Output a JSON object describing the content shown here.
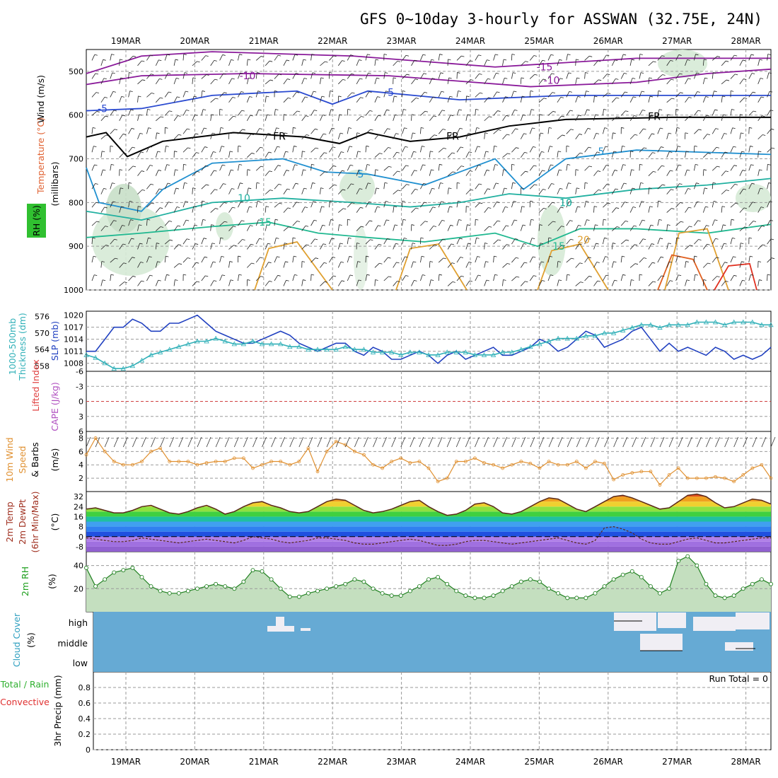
{
  "title": "GFS 0~10day 3-hourly for ASSWAN (32.75E, 24N)",
  "dates": [
    "19MAR",
    "20MAR",
    "21MAR",
    "22MAR",
    "23MAR",
    "24MAR",
    "25MAR",
    "26MAR",
    "27MAR",
    "28MAR"
  ],
  "panels": {
    "sounding": {
      "labels": [
        "Wind (m/s)",
        "Temperature (°C)",
        "RH (%)",
        "(millibars)"
      ],
      "label_colors": [
        "#000000",
        "#e06030",
        "#e06030",
        "#000000"
      ],
      "yticks": [
        "500",
        "600",
        "700",
        "800",
        "900",
        "1000"
      ]
    },
    "slp": {
      "left_labels": [
        "1000-500mb",
        "Thickness (dm)"
      ],
      "right_labels": [
        "SLP (mb)"
      ],
      "left_ticks": [
        "576",
        "570",
        "564",
        "558"
      ],
      "right_ticks": [
        "1020",
        "1017",
        "1014",
        "1011",
        "1008"
      ]
    },
    "cape": {
      "labels": [
        "Lifted Index",
        "CAPE (J/kg)"
      ],
      "ticks": [
        "-6",
        "-3",
        "0",
        "3",
        "6"
      ]
    },
    "wind": {
      "labels": [
        "10m Wind",
        "Speed",
        "& Barbs",
        "(m/s)"
      ],
      "ticks": [
        "8",
        "6",
        "4",
        "2"
      ]
    },
    "temp": {
      "labels": [
        "2m Temp",
        "2m DewPt",
        "(6hr Min/Max)",
        "(°C)"
      ],
      "ticks": [
        "32",
        "24",
        "16",
        "8",
        "0",
        "-8"
      ]
    },
    "rh": {
      "labels": [
        "2m RH",
        "(%)"
      ],
      "ticks": [
        "40",
        "20"
      ]
    },
    "cloud": {
      "labels": [
        "Cloud Cover",
        "(%)"
      ],
      "levels": [
        "high",
        "middle",
        "low"
      ]
    },
    "precip": {
      "labels": [
        "Total / Rain",
        "Convective",
        "3hr Precip (mm)"
      ],
      "ticks": [
        "0.8",
        "0.6",
        "0.4",
        "0.2",
        "0"
      ],
      "run_total": "Run Total = 0"
    }
  },
  "contour_labels": [
    "-15",
    "-10",
    "-5",
    "-10",
    "-5",
    "FR",
    "FR",
    "FR",
    "5",
    "5",
    "10",
    "10",
    "10",
    "15",
    "15",
    "20"
  ],
  "chart_data": [
    {
      "type": "line",
      "name": "sounding",
      "y_axis": "pressure (millibars)",
      "ylim": [
        1000,
        450
      ],
      "contours": {
        "temperature_C": [
          -15,
          -10,
          -5,
          0,
          5,
          10,
          15,
          20,
          25
        ],
        "rh_percent": [
          10,
          30
        ]
      }
    },
    {
      "type": "line",
      "name": "slp_thickness",
      "x_days": [
        0,
        0.125,
        0.25,
        0.375,
        0.5,
        0.625,
        0.75,
        0.875,
        1.0,
        1.125,
        1.25,
        1.375,
        1.5,
        1.625,
        1.75,
        1.875,
        2.0,
        2.125,
        2.25,
        2.375,
        2.5,
        2.625,
        2.75,
        2.875,
        3.0,
        3.125,
        3.25,
        3.375,
        3.5,
        3.625,
        3.75,
        3.875,
        4.0,
        4.125,
        4.25,
        4.375,
        4.5,
        4.625,
        4.75,
        4.875,
        5.0,
        5.125,
        5.25,
        5.375,
        5.5,
        5.625,
        5.75,
        5.875,
        6.0,
        6.125,
        6.25,
        6.375,
        6.5,
        6.625,
        6.75,
        6.875,
        7.0,
        7.125,
        7.25,
        7.375,
        7.5,
        7.625,
        7.75,
        7.875,
        8.0,
        8.125,
        8.25,
        8.375,
        8.5,
        8.625,
        8.75,
        8.875,
        9.0,
        9.125,
        9.25
      ],
      "series": [
        {
          "name": "SLP (mb)",
          "color": "#2040c0",
          "axis": "right",
          "ylim": [
            1006,
            1021
          ],
          "values": [
            1011,
            1011,
            1014,
            1017,
            1017,
            1019,
            1018,
            1016,
            1016,
            1018,
            1018,
            1019,
            1020,
            1018,
            1016,
            1015,
            1014,
            1013,
            1013,
            1014,
            1015,
            1016,
            1015,
            1013,
            1012,
            1011,
            1012,
            1013,
            1013,
            1011,
            1010,
            1012,
            1011,
            1009,
            1009,
            1010,
            1011,
            1010,
            1008,
            1010,
            1011,
            1009,
            1010,
            1011,
            1012,
            1010,
            1010,
            1011,
            1012,
            1014,
            1013,
            1011,
            1012,
            1014,
            1016,
            1015,
            1012,
            1013,
            1014,
            1016,
            1017,
            1014,
            1011,
            1013,
            1011,
            1012,
            1011,
            1010,
            1012,
            1011,
            1009,
            1010,
            1009,
            1010,
            1012
          ]
        },
        {
          "name": "1000-500mb Thickness (dm)",
          "color": "#30b0b8",
          "axis": "left",
          "ylim": [
            556,
            578
          ],
          "values": [
            562,
            561,
            559,
            557,
            557,
            558,
            560,
            562,
            563,
            564,
            565,
            566,
            567,
            567,
            568,
            567,
            566,
            566,
            567,
            566,
            566,
            566,
            565,
            565,
            564,
            564,
            564,
            564,
            565,
            564,
            564,
            563,
            563,
            563,
            562,
            563,
            563,
            562,
            562,
            563,
            563,
            563,
            562,
            562,
            562,
            563,
            563,
            564,
            565,
            566,
            567,
            568,
            568,
            568,
            569,
            569,
            570,
            570,
            571,
            572,
            573,
            573,
            572,
            573,
            573,
            573,
            574,
            574,
            574,
            573,
            574,
            574,
            574,
            573,
            573
          ]
        }
      ]
    },
    {
      "type": "line",
      "name": "lifted_index_cape",
      "ylim": [
        6,
        -6
      ],
      "series": [
        {
          "name": "Lifted Index",
          "color": "#d02020",
          "values": [
            0
          ]
        }
      ]
    },
    {
      "type": "line",
      "name": "10m_wind_speed",
      "ylabel": "(m/s)",
      "ylim": [
        0,
        9
      ],
      "series": [
        {
          "name": "10m Wind Speed",
          "color": "#e09030",
          "values": [
            5.5,
            8,
            6,
            4.5,
            4,
            4,
            4.5,
            6,
            6.5,
            4.5,
            4.5,
            4.5,
            4,
            4.3,
            4.5,
            4.5,
            5,
            5,
            3.5,
            4,
            4.5,
            4.5,
            4,
            4.5,
            6.5,
            3,
            6,
            7.5,
            7,
            6,
            5.5,
            4,
            3.5,
            4.5,
            5,
            4.3,
            4.5,
            3.5,
            1.5,
            2,
            4.5,
            4.5,
            5,
            4.3,
            4,
            3.5,
            4,
            4.5,
            4.2,
            3.5,
            4.5,
            4,
            4,
            4.5,
            3.5,
            4.5,
            4.2,
            1.8,
            2.5,
            2.8,
            3,
            3,
            1,
            2.5,
            3.5,
            2,
            2,
            2,
            2.2,
            2,
            1.5,
            2.5,
            3.5,
            4,
            2
          ]
        }
      ]
    },
    {
      "type": "area",
      "name": "2m_temp_dewpoint",
      "ylabel": "(°C)",
      "ylim": [
        -12,
        36
      ],
      "series": [
        {
          "name": "2m Temp",
          "color": "#5a2a1a",
          "values": [
            22,
            23,
            21,
            19,
            19,
            21,
            24,
            25,
            22,
            19,
            18,
            20,
            23,
            25,
            22,
            18,
            20,
            24,
            27,
            28,
            25,
            23,
            20,
            19,
            20,
            24,
            28,
            30,
            29,
            25,
            21,
            19,
            20,
            22,
            25,
            28,
            29,
            24,
            20,
            17,
            18,
            21,
            26,
            27,
            24,
            19,
            18,
            20,
            24,
            28,
            31,
            30,
            26,
            22,
            20,
            24,
            28,
            32,
            33,
            31,
            28,
            25,
            22,
            23,
            28,
            33,
            34,
            32,
            27,
            23,
            24,
            27,
            30,
            29,
            26
          ]
        },
        {
          "name": "2m DewPt",
          "color": "#5a2a1a",
          "values": [
            -1,
            -2,
            -3,
            -4,
            -4,
            -3,
            -1,
            -2,
            -3,
            -4,
            -5,
            -4,
            -3,
            -2,
            -3,
            -4,
            -5,
            -3,
            0,
            -1,
            -2,
            -4,
            -5,
            -4,
            -3,
            -1,
            -1,
            -2,
            -3,
            -5,
            -6,
            -6,
            -5,
            -4,
            -3,
            -2,
            -3,
            -5,
            -7,
            -7,
            -6,
            -4,
            -3,
            -3,
            -4,
            -5,
            -6,
            -5,
            -4,
            -3,
            -2,
            -1,
            -3,
            -5,
            -6,
            -3,
            7,
            8,
            6,
            3,
            -2,
            -5,
            -6,
            -6,
            -4,
            -2,
            -1,
            -3,
            -5,
            -5,
            -4,
            -3,
            -2,
            -1,
            -1
          ]
        }
      ]
    },
    {
      "type": "area",
      "name": "2m_rh",
      "ylabel": "(%)",
      "ylim": [
        0,
        52
      ],
      "series": [
        {
          "name": "2m RH",
          "color": "#40a030",
          "values": [
            38,
            22,
            28,
            34,
            36,
            38,
            30,
            22,
            18,
            16,
            16,
            18,
            20,
            22,
            24,
            22,
            20,
            26,
            36,
            35,
            28,
            20,
            13,
            13,
            16,
            18,
            20,
            22,
            24,
            28,
            26,
            20,
            16,
            14,
            14,
            18,
            22,
            28,
            30,
            24,
            18,
            14,
            12,
            12,
            14,
            18,
            22,
            26,
            28,
            26,
            20,
            16,
            12,
            12,
            12,
            16,
            22,
            28,
            32,
            35,
            30,
            22,
            16,
            20,
            44,
            48,
            40,
            24,
            14,
            12,
            14,
            20,
            24,
            28,
            24
          ]
        }
      ]
    },
    {
      "type": "heatmap",
      "name": "cloud_cover",
      "rows": [
        "high",
        "middle",
        "low"
      ]
    },
    {
      "type": "bar",
      "name": "3hr_precip",
      "ylabel": "3hr Precip (mm)",
      "ylim": [
        0,
        1
      ],
      "values": [
        0
      ],
      "annotation": "Run Total = 0"
    }
  ]
}
